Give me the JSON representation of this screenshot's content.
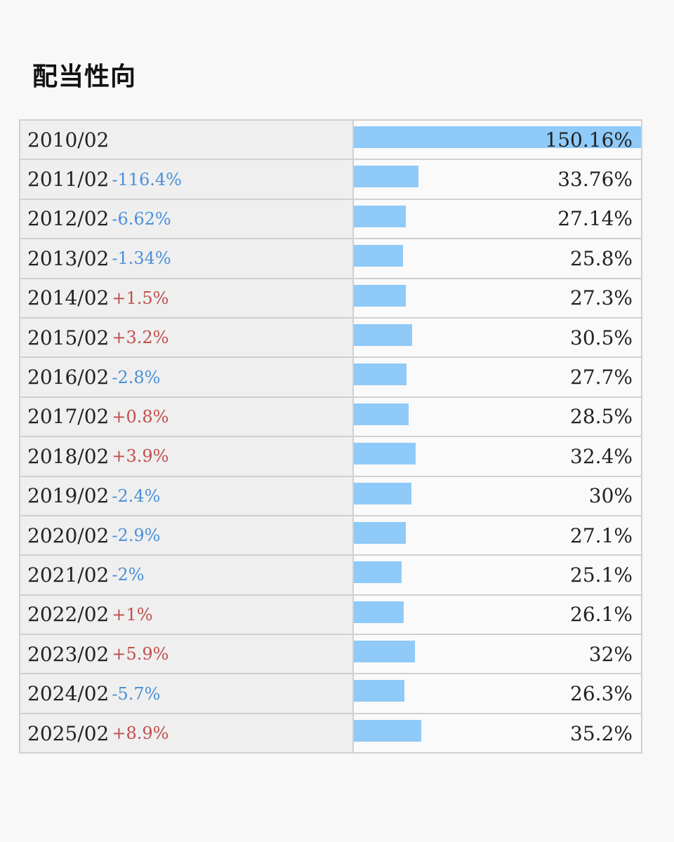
{
  "title": "配当性向",
  "colors": {
    "bar": "#8fcaf8",
    "increase": "#c0504d",
    "decrease": "#4a90d9",
    "label_bg": "#efefef",
    "border": "#d0d0d0"
  },
  "chart_data": {
    "type": "bar",
    "orientation": "horizontal",
    "title": "配当性向",
    "xlim": [
      0,
      150.16
    ],
    "categories": [
      "2010/02",
      "2011/02",
      "2012/02",
      "2013/02",
      "2014/02",
      "2015/02",
      "2016/02",
      "2017/02",
      "2018/02",
      "2019/02",
      "2020/02",
      "2021/02",
      "2022/02",
      "2023/02",
      "2024/02",
      "2025/02"
    ],
    "rows": [
      {
        "period": "2010/02",
        "change": "",
        "direction": "none",
        "value": 150.16,
        "value_label": "150.16%"
      },
      {
        "period": "2011/02",
        "change": "-116.4%",
        "direction": "down",
        "value": 33.76,
        "value_label": "33.76%"
      },
      {
        "period": "2012/02",
        "change": "-6.62%",
        "direction": "down",
        "value": 27.14,
        "value_label": "27.14%"
      },
      {
        "period": "2013/02",
        "change": "-1.34%",
        "direction": "down",
        "value": 25.8,
        "value_label": "25.8%"
      },
      {
        "period": "2014/02",
        "change": "+1.5%",
        "direction": "up",
        "value": 27.3,
        "value_label": "27.3%"
      },
      {
        "period": "2015/02",
        "change": "+3.2%",
        "direction": "up",
        "value": 30.5,
        "value_label": "30.5%"
      },
      {
        "period": "2016/02",
        "change": "-2.8%",
        "direction": "down",
        "value": 27.7,
        "value_label": "27.7%"
      },
      {
        "period": "2017/02",
        "change": "+0.8%",
        "direction": "up",
        "value": 28.5,
        "value_label": "28.5%"
      },
      {
        "period": "2018/02",
        "change": "+3.9%",
        "direction": "up",
        "value": 32.4,
        "value_label": "32.4%"
      },
      {
        "period": "2019/02",
        "change": "-2.4%",
        "direction": "down",
        "value": 30,
        "value_label": "30%"
      },
      {
        "period": "2020/02",
        "change": "-2.9%",
        "direction": "down",
        "value": 27.1,
        "value_label": "27.1%"
      },
      {
        "period": "2021/02",
        "change": "-2%",
        "direction": "down",
        "value": 25.1,
        "value_label": "25.1%"
      },
      {
        "period": "2022/02",
        "change": "+1%",
        "direction": "up",
        "value": 26.1,
        "value_label": "26.1%"
      },
      {
        "period": "2023/02",
        "change": "+5.9%",
        "direction": "up",
        "value": 32,
        "value_label": "32%"
      },
      {
        "period": "2024/02",
        "change": "-5.7%",
        "direction": "down",
        "value": 26.3,
        "value_label": "26.3%"
      },
      {
        "period": "2025/02",
        "change": "+8.9%",
        "direction": "up",
        "value": 35.2,
        "value_label": "35.2%"
      }
    ]
  }
}
